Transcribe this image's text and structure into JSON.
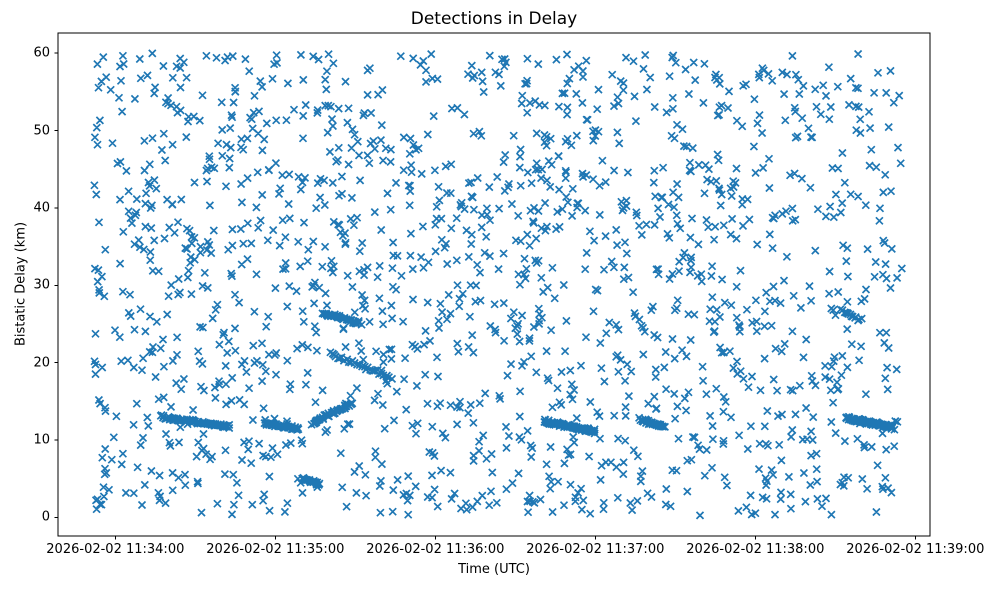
{
  "figure": {
    "background_color": "#ffffff",
    "frame_color": "#000000",
    "text_color": "#000000"
  },
  "chart_data": {
    "type": "scatter",
    "title": "Detections in Delay",
    "xlabel": "Time (UTC)",
    "ylabel": "Bistatic Delay (km)",
    "marker": "x",
    "marker_color": "#1f77b4",
    "marker_size_px": 7,
    "grid": false,
    "legend": null,
    "x_ref_time": "2026-02-02 11:34:00",
    "x_tick_labels": [
      "2026-02-02 11:34:00",
      "2026-02-02 11:35:00",
      "2026-02-02 11:36:00",
      "2026-02-02 11:37:00",
      "2026-02-02 11:38:00",
      "2026-02-02 11:39:00"
    ],
    "x_tick_offsets_s": [
      0,
      60,
      120,
      180,
      240,
      300
    ],
    "xlim_offsets_s": [
      -21.5,
      305.5
    ],
    "y_tick_labels": [
      "0",
      "10",
      "20",
      "30",
      "40",
      "50",
      "60"
    ],
    "y_ticks": [
      0,
      10,
      20,
      30,
      40,
      50,
      60
    ],
    "ylim": [
      -2.4,
      62.6
    ],
    "background_points": {
      "description": "uniform random clutter detections across full time and delay span",
      "count": 1600,
      "t_offset_range_s": [
        -8,
        295
      ],
      "y_range_km": [
        0.2,
        60.0
      ],
      "distribution": "uniform",
      "seed": 7
    },
    "tracks": [
      {
        "t_start_s": 17,
        "t_end_s": 43,
        "y_start_km": 13.0,
        "y_end_km": 11.7,
        "count": 90,
        "jitter_km": 0.3
      },
      {
        "t_start_s": 56,
        "t_end_s": 69,
        "y_start_km": 12.2,
        "y_end_km": 11.4,
        "count": 40,
        "jitter_km": 0.25
      },
      {
        "t_start_s": 74,
        "t_end_s": 89,
        "y_start_km": 12.2,
        "y_end_km": 14.8,
        "count": 40,
        "jitter_km": 0.3
      },
      {
        "t_start_s": 70,
        "t_end_s": 77,
        "y_start_km": 5.0,
        "y_end_km": 4.3,
        "count": 22,
        "jitter_km": 0.25
      },
      {
        "t_start_s": 78,
        "t_end_s": 92,
        "y_start_km": 26.4,
        "y_end_km": 25.1,
        "count": 40,
        "jitter_km": 0.25
      },
      {
        "t_start_s": 80,
        "t_end_s": 104,
        "y_start_km": 21.3,
        "y_end_km": 17.9,
        "count": 30,
        "jitter_km": 0.3
      },
      {
        "t_start_s": 161,
        "t_end_s": 180,
        "y_start_km": 12.4,
        "y_end_km": 11.1,
        "count": 85,
        "jitter_km": 0.3
      },
      {
        "t_start_s": 197,
        "t_end_s": 206,
        "y_start_km": 12.6,
        "y_end_km": 11.7,
        "count": 28,
        "jitter_km": 0.25
      },
      {
        "t_start_s": 272,
        "t_end_s": 280,
        "y_start_km": 26.8,
        "y_end_km": 25.4,
        "count": 14,
        "jitter_km": 0.35
      },
      {
        "t_start_s": 274,
        "t_end_s": 292,
        "y_start_km": 12.9,
        "y_end_km": 11.6,
        "count": 85,
        "jitter_km": 0.3
      }
    ]
  }
}
